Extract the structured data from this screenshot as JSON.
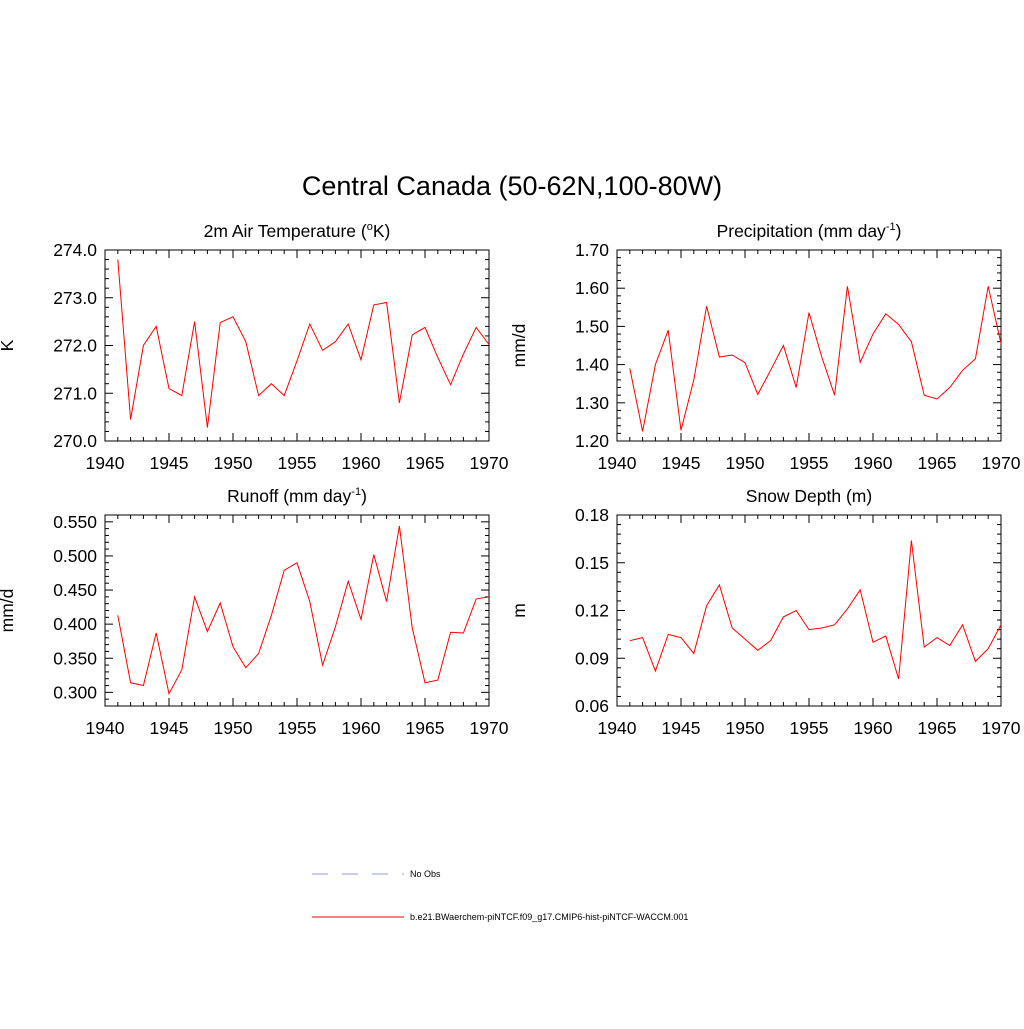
{
  "page_title": "Central Canada (50-62N,100-80W)",
  "colors": {
    "series": "#ff0000",
    "obs": "#9999dd",
    "axis": "#000000"
  },
  "chart_data": [
    {
      "type": "line",
      "title": "2m Air Temperature (",
      "title_super": "o",
      "title_suffix": "K)",
      "ylabel": "K",
      "xlim": [
        1940,
        1970
      ],
      "ylim": [
        270.0,
        274.0
      ],
      "xticks": [
        1940,
        1945,
        1950,
        1955,
        1960,
        1965,
        1970
      ],
      "yticks": [
        "270.0",
        "271.0",
        "272.0",
        "273.0",
        "274.0"
      ],
      "x": [
        1941,
        1942,
        1943,
        1944,
        1945,
        1946,
        1947,
        1948,
        1949,
        1950,
        1951,
        1952,
        1953,
        1954,
        1955,
        1956,
        1957,
        1958,
        1959,
        1960,
        1961,
        1962,
        1963,
        1964,
        1965,
        1966,
        1967,
        1968,
        1969,
        1970
      ],
      "series": [
        {
          "values": [
            273.8,
            270.45,
            272.0,
            272.4,
            271.1,
            270.95,
            272.5,
            270.28,
            272.48,
            272.6,
            272.08,
            270.95,
            271.2,
            270.95,
            271.68,
            272.45,
            271.9,
            272.08,
            272.45,
            271.7,
            272.85,
            272.9,
            270.8,
            272.22,
            272.38,
            271.75,
            271.18,
            271.82,
            272.38,
            272.02
          ]
        }
      ]
    },
    {
      "type": "line",
      "title": "Precipitation (mm day",
      "title_super": "-1",
      "title_suffix": ")",
      "ylabel": "mm/d",
      "xlim": [
        1940,
        1970
      ],
      "ylim": [
        1.2,
        1.7
      ],
      "xticks": [
        1940,
        1945,
        1950,
        1955,
        1960,
        1965,
        1970
      ],
      "yticks": [
        "1.20",
        "1.30",
        "1.40",
        "1.50",
        "1.60",
        "1.70"
      ],
      "x": [
        1941,
        1942,
        1943,
        1944,
        1945,
        1946,
        1947,
        1948,
        1949,
        1950,
        1951,
        1952,
        1953,
        1954,
        1955,
        1956,
        1957,
        1958,
        1959,
        1960,
        1961,
        1962,
        1963,
        1964,
        1965,
        1966,
        1967,
        1968,
        1969,
        1970
      ],
      "series": [
        {
          "values": [
            1.39,
            1.225,
            1.4,
            1.49,
            1.228,
            1.36,
            1.553,
            1.42,
            1.425,
            1.405,
            1.322,
            1.385,
            1.45,
            1.34,
            1.536,
            1.42,
            1.32,
            1.605,
            1.406,
            1.48,
            1.533,
            1.505,
            1.46,
            1.32,
            1.31,
            1.34,
            1.385,
            1.415,
            1.605,
            1.455
          ]
        }
      ]
    },
    {
      "type": "line",
      "title": "Runoff (mm day",
      "title_super": "-1",
      "title_suffix": ")",
      "ylabel": "mm/d",
      "xlim": [
        1940,
        1970
      ],
      "ylim": [
        0.28,
        0.56
      ],
      "xticks": [
        1940,
        1945,
        1950,
        1955,
        1960,
        1965,
        1970
      ],
      "yticks": [
        "0.300",
        "0.350",
        "0.400",
        "0.450",
        "0.500",
        "0.550"
      ],
      "x": [
        1941,
        1942,
        1943,
        1944,
        1945,
        1946,
        1947,
        1948,
        1949,
        1950,
        1951,
        1952,
        1953,
        1954,
        1955,
        1956,
        1957,
        1958,
        1959,
        1960,
        1961,
        1962,
        1963,
        1964,
        1965,
        1966,
        1967,
        1968,
        1969,
        1970
      ],
      "series": [
        {
          "values": [
            0.413,
            0.314,
            0.31,
            0.387,
            0.298,
            0.333,
            0.44,
            0.389,
            0.431,
            0.367,
            0.336,
            0.357,
            0.413,
            0.479,
            0.49,
            0.433,
            0.34,
            0.396,
            0.463,
            0.407,
            0.502,
            0.433,
            0.544,
            0.395,
            0.314,
            0.318,
            0.388,
            0.387,
            0.437,
            0.44
          ]
        }
      ]
    },
    {
      "type": "line",
      "title": "Snow Depth (m)",
      "title_super": "",
      "title_suffix": "",
      "ylabel": "m",
      "xlim": [
        1940,
        1970
      ],
      "ylim": [
        0.06,
        0.18
      ],
      "xticks": [
        1940,
        1945,
        1950,
        1955,
        1960,
        1965,
        1970
      ],
      "yticks": [
        "0.06",
        "0.09",
        "0.12",
        "0.15",
        "0.18"
      ],
      "x": [
        1941,
        1942,
        1943,
        1944,
        1945,
        1946,
        1947,
        1948,
        1949,
        1950,
        1951,
        1952,
        1953,
        1954,
        1955,
        1956,
        1957,
        1958,
        1959,
        1960,
        1961,
        1962,
        1963,
        1964,
        1965,
        1966,
        1967,
        1968,
        1969,
        1970
      ],
      "series": [
        {
          "values": [
            0.101,
            0.103,
            0.082,
            0.105,
            0.103,
            0.093,
            0.123,
            0.136,
            0.109,
            0.102,
            0.095,
            0.101,
            0.116,
            0.12,
            0.108,
            0.109,
            0.111,
            0.121,
            0.133,
            0.1,
            0.104,
            0.077,
            0.164,
            0.097,
            0.103,
            0.098,
            0.111,
            0.088,
            0.096,
            0.111
          ]
        }
      ]
    }
  ],
  "legend": {
    "obs_label": "No Obs",
    "model_label": "b.e21.BWaerchem-piNTCF.f09_g17.CMIP6-hist-piNTCF-WACCM.001"
  }
}
